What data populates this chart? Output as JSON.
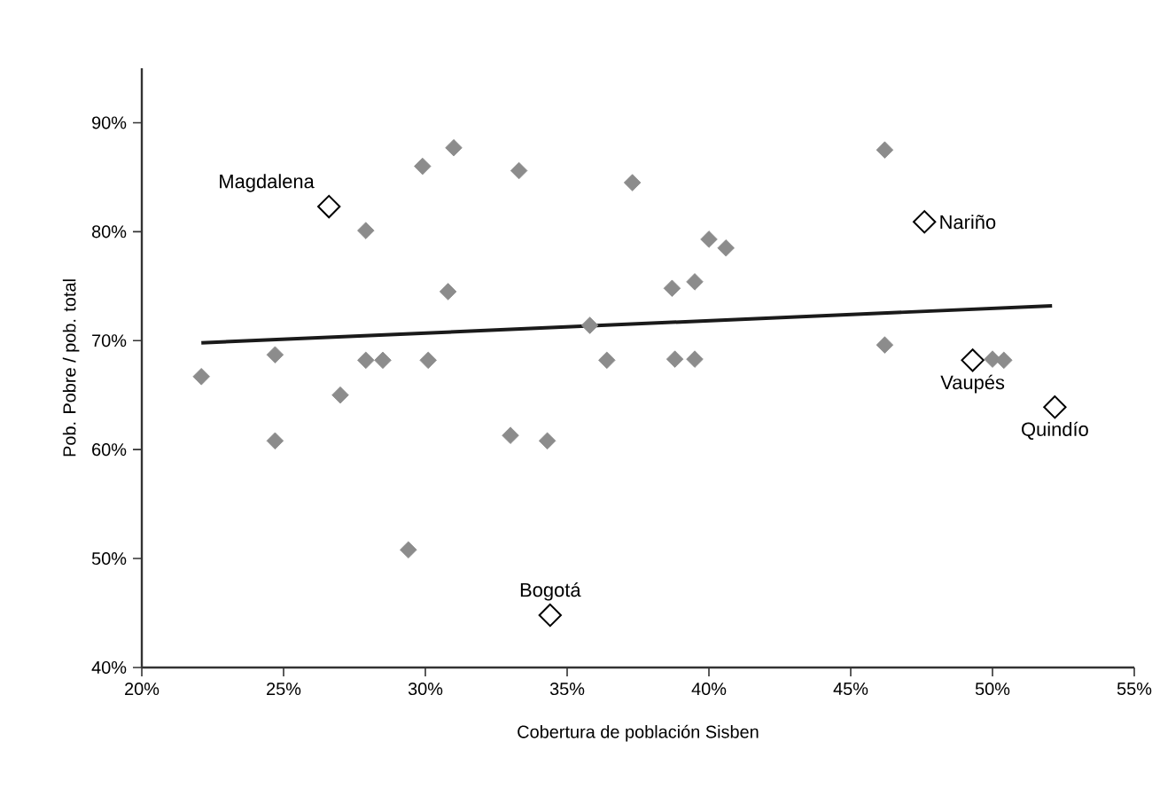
{
  "chart_data": {
    "type": "scatter",
    "xlabel": "Cobertura de población Sisben",
    "ylabel": "Pob. Pobre / pob. total",
    "xlim": [
      20,
      55
    ],
    "ylim": [
      40,
      95
    ],
    "xticks": [
      {
        "value": 20,
        "label": "20%"
      },
      {
        "value": 25,
        "label": "25%"
      },
      {
        "value": 30,
        "label": "30%"
      },
      {
        "value": 35,
        "label": "35%"
      },
      {
        "value": 40,
        "label": "40%"
      },
      {
        "value": 45,
        "label": "45%"
      },
      {
        "value": 50,
        "label": "50%"
      },
      {
        "value": 55,
        "label": "55%"
      }
    ],
    "yticks": [
      {
        "value": 40,
        "label": "40%"
      },
      {
        "value": 50,
        "label": "50%"
      },
      {
        "value": 60,
        "label": "60%"
      },
      {
        "value": 70,
        "label": "70%"
      },
      {
        "value": 80,
        "label": "80%"
      },
      {
        "value": 90,
        "label": "90%"
      }
    ],
    "marker": "diamond",
    "grid": false,
    "series": [
      {
        "color": "#8c8c8c",
        "x": [
          31.0,
          29.9,
          33.3,
          37.3,
          27.9,
          30.8,
          35.8,
          24.7,
          22.1,
          27.9,
          28.5,
          30.1,
          36.4,
          27.0,
          24.7,
          33.0,
          34.3,
          29.4,
          46.2,
          40.0,
          40.6,
          38.7,
          39.5,
          46.2,
          38.8,
          39.5,
          50.0,
          50.4
        ],
        "values": [
          87.7,
          86.0,
          85.6,
          84.5,
          80.1,
          74.5,
          71.4,
          68.7,
          66.7,
          68.2,
          68.2,
          68.2,
          68.2,
          65.0,
          60.8,
          61.3,
          60.8,
          50.8,
          87.5,
          79.3,
          78.5,
          74.8,
          75.4,
          69.6,
          68.3,
          68.3,
          68.3,
          68.2
        ]
      },
      {
        "color": "#000000",
        "x": [
          26.6,
          47.6,
          49.3,
          52.2,
          34.4
        ],
        "values": [
          82.3,
          80.9,
          68.2,
          63.9,
          44.8
        ]
      },
      {
        "type": "line",
        "marker": "none",
        "color": "#1a1a1a",
        "x": [
          22.1,
          52.1
        ],
        "values": [
          69.8,
          73.2
        ]
      }
    ],
    "annotations": [
      {
        "text": "Magdalena",
        "x": 26.6,
        "y": 82.3
      },
      {
        "text": "Nariño",
        "x": 47.6,
        "y": 80.9
      },
      {
        "text": "Vaupés",
        "x": 49.3,
        "y": 68.2
      },
      {
        "text": "Quindío",
        "x": 52.2,
        "y": 63.9
      },
      {
        "text": "Bogotá",
        "x": 34.4,
        "y": 44.8
      }
    ]
  }
}
